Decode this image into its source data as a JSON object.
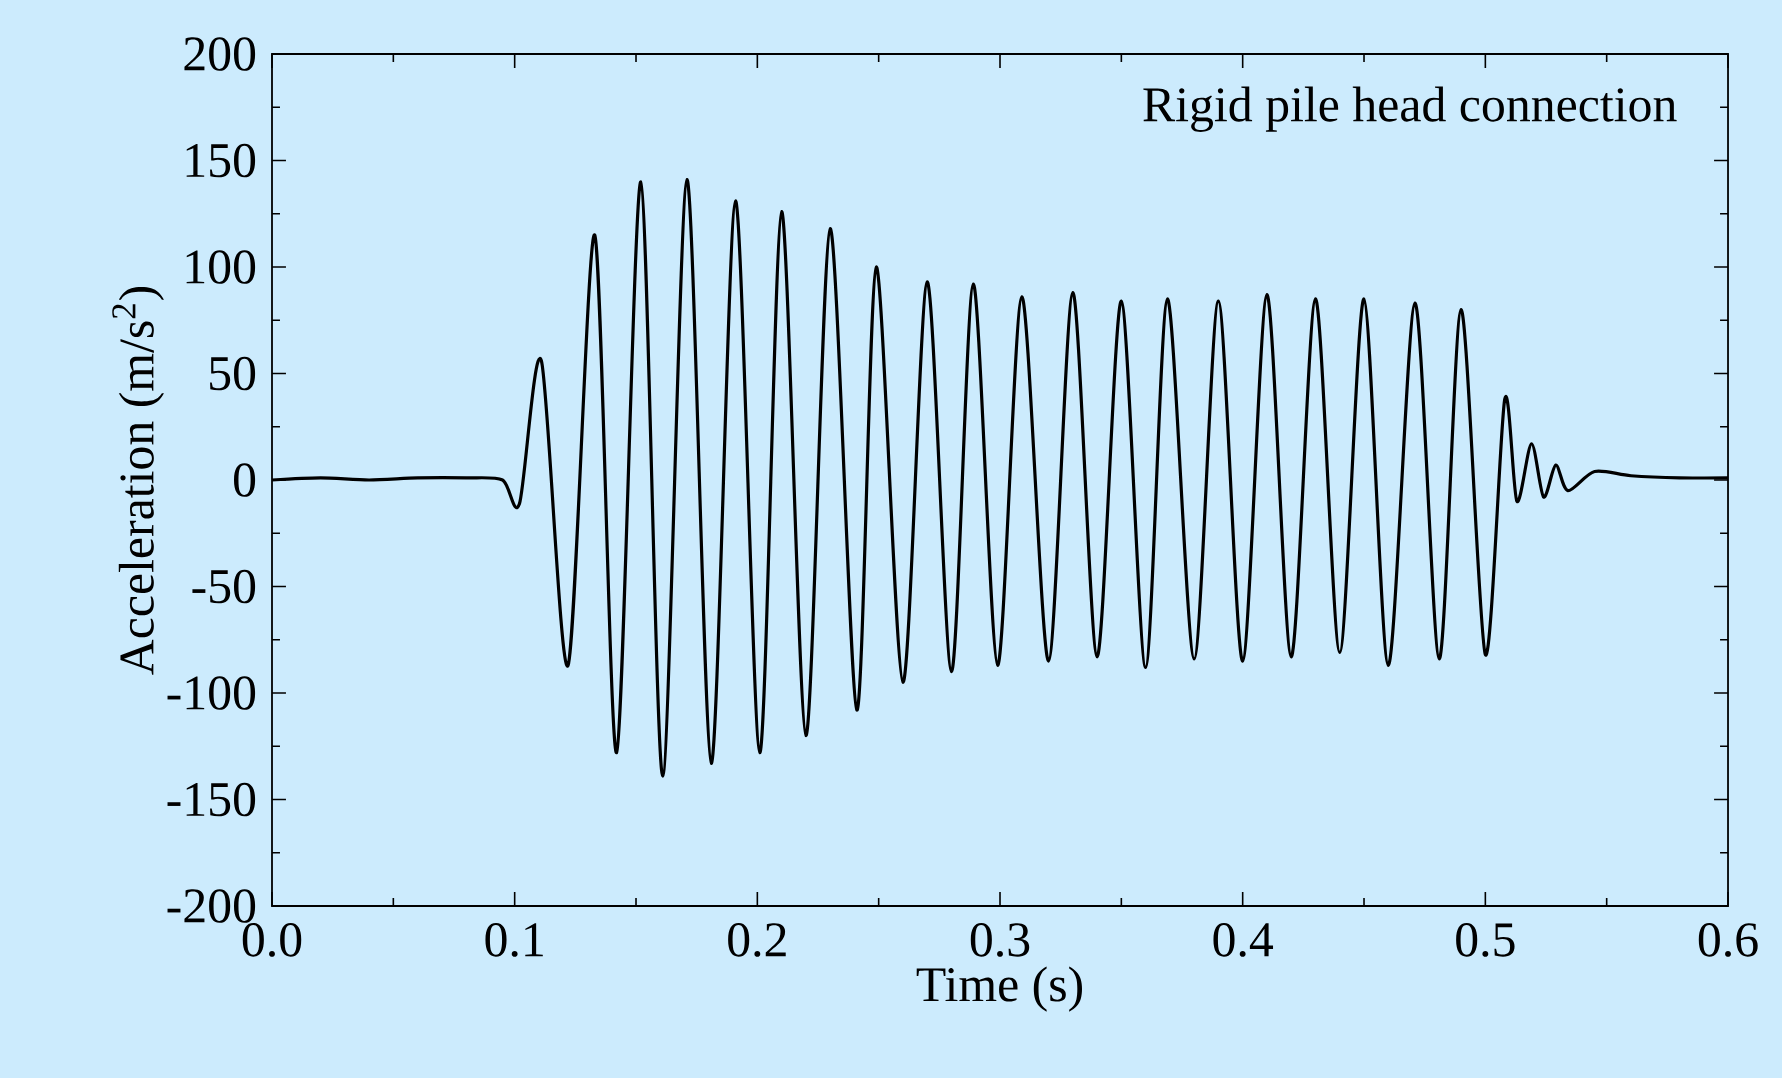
{
  "chart_data": {
    "type": "line",
    "xlabel": "Time (s)",
    "ylabel": "Acceleration (m/s$^{2}$)",
    "annotations": [
      "Rigid pile head connection"
    ],
    "xlim": [
      0,
      0.6
    ],
    "ylim": [
      -200,
      200
    ],
    "xticks": [
      {
        "value": 0,
        "label": "0.0"
      },
      {
        "value": 0.1,
        "label": "0.1"
      },
      {
        "value": 0.2,
        "label": "0.2"
      },
      {
        "value": 0.3,
        "label": "0.3"
      },
      {
        "value": 0.4,
        "label": "0.4"
      },
      {
        "value": 0.5,
        "label": "0.5"
      },
      {
        "value": 0.6,
        "label": "0.6"
      }
    ],
    "yticks": [
      -200,
      -150,
      -100,
      -50,
      0,
      50,
      100,
      150,
      200
    ],
    "grid": false,
    "marker": "none",
    "line_style": "solid",
    "x": [
      0,
      0.02,
      0.04,
      0.06,
      0.08,
      0.095,
      0.102,
      0.111,
      0.122,
      0.133,
      0.142,
      0.152,
      0.161,
      0.171,
      0.181,
      0.191,
      0.201,
      0.21,
      0.22,
      0.23,
      0.241,
      0.249,
      0.26,
      0.27,
      0.28,
      0.289,
      0.299,
      0.309,
      0.32,
      0.33,
      0.34,
      0.35,
      0.36,
      0.369,
      0.38,
      0.39,
      0.4,
      0.41,
      0.42,
      0.43,
      0.44,
      0.45,
      0.46,
      0.471,
      0.481,
      0.49,
      0.5,
      0.508,
      0.513,
      0.519,
      0.524,
      0.529,
      0.534,
      0.545,
      0.56,
      0.58,
      0.6
    ],
    "series": [
      {
        "color": "#000000",
        "values": [
          0,
          1,
          0,
          1,
          1,
          0,
          -11,
          56,
          -87,
          115,
          -128,
          140,
          -139,
          141,
          -133,
          131,
          -128,
          126,
          -120,
          118,
          -108,
          100,
          -95,
          93,
          -90,
          92,
          -87,
          86,
          -85,
          88,
          -83,
          84,
          -88,
          85,
          -84,
          84,
          -85,
          87,
          -83,
          85,
          -81,
          85,
          -87,
          83,
          -84,
          80,
          -82,
          38,
          -10,
          17,
          -8,
          7,
          -5,
          4,
          2,
          1,
          1
        ]
      }
    ]
  }
}
